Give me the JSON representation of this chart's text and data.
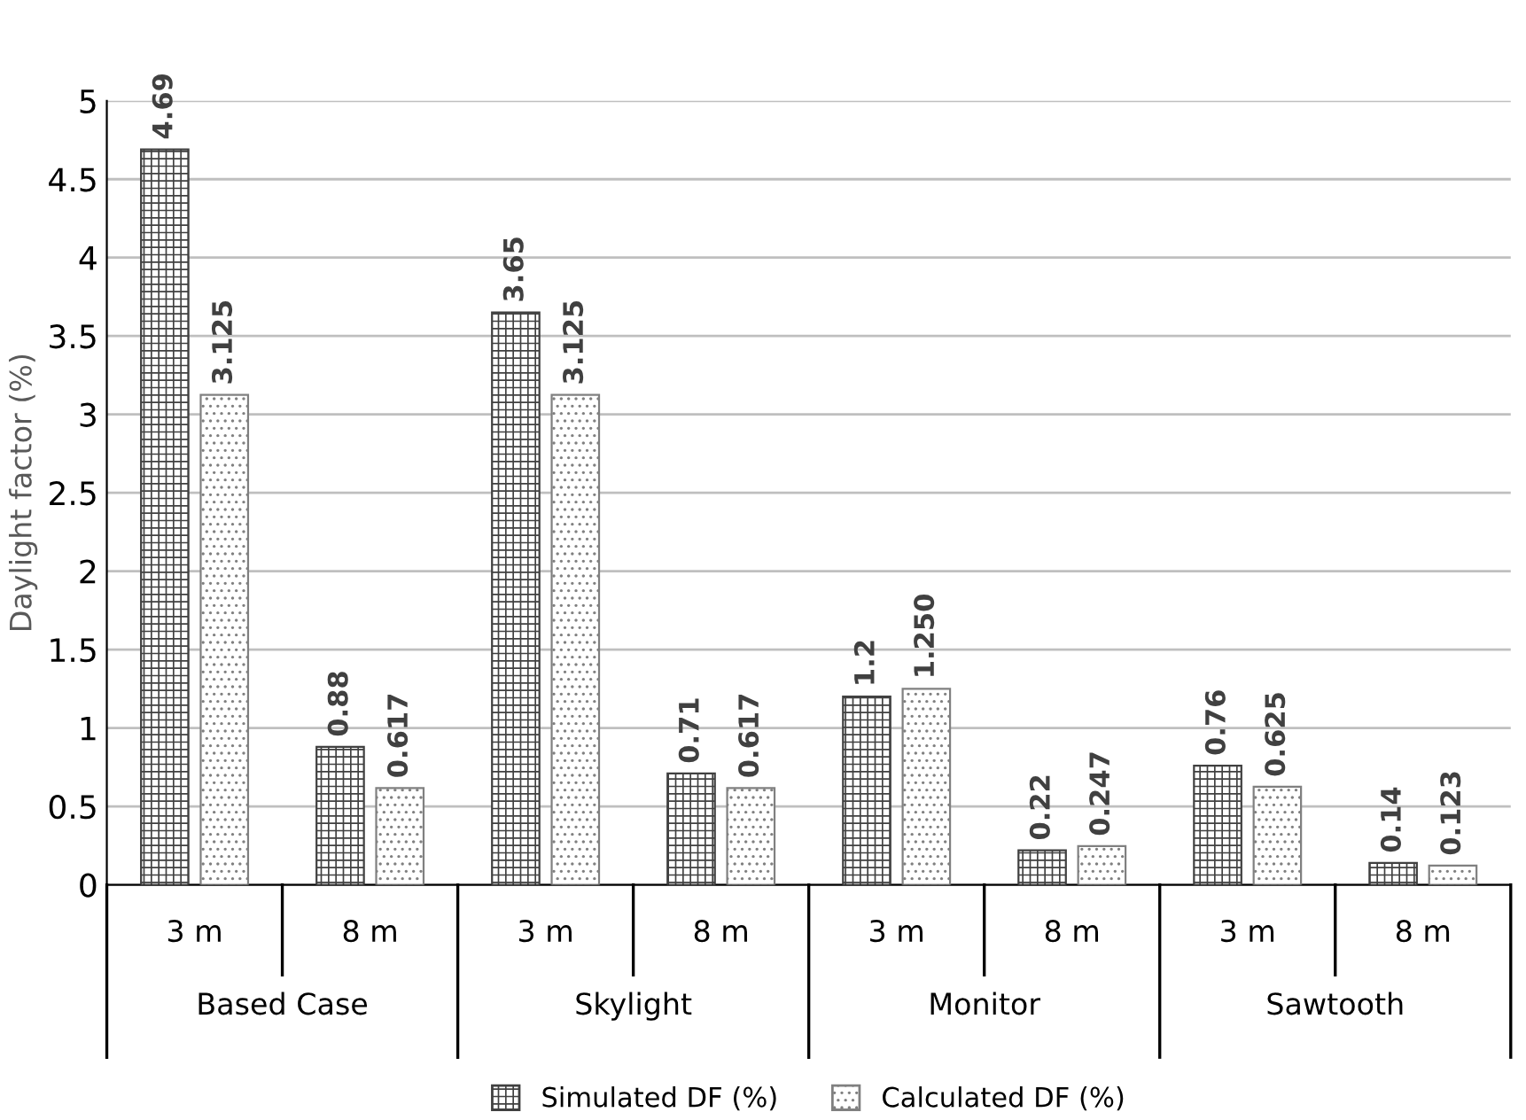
{
  "chart_data": {
    "type": "bar",
    "ylabel": "Daylight factor (%)",
    "categories": [
      "3 m",
      "8 m",
      "3 m",
      "8 m",
      "3 m",
      "8 m",
      "3 m",
      "8 m"
    ],
    "annotations": [
      "Based Case",
      "Skylight",
      "Monitor",
      "Sawtooth"
    ],
    "series": [
      {
        "name": "Simulated DF (%)",
        "color": "#404040",
        "values": [
          4.69,
          0.88,
          3.65,
          0.71,
          1.2,
          0.22,
          0.76,
          0.14
        ],
        "value_labels": [
          "4.69",
          "0.88",
          "3.65",
          "0.71",
          "1.2",
          "0.22",
          "0.76",
          "0.14"
        ]
      },
      {
        "name": "Calculated DF (%)",
        "color": "#808080",
        "values": [
          3.125,
          0.617,
          3.125,
          0.617,
          1.25,
          0.247,
          0.625,
          0.123
        ],
        "value_labels": [
          "3.125",
          "0.617",
          "3.125",
          "0.617",
          "1.250",
          "0.247",
          "0.625",
          "0.123"
        ]
      }
    ],
    "ylim": [
      0,
      5
    ],
    "yticks": [
      0,
      0.5,
      1,
      1.5,
      2,
      2.5,
      3,
      3.5,
      4,
      4.5,
      5
    ],
    "grid": "y",
    "legend": "bottom"
  }
}
